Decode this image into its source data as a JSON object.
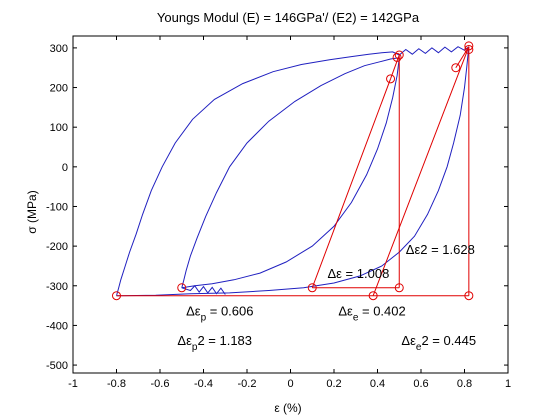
{
  "chart_data": {
    "type": "line",
    "title": "Youngs Modul (E) = 146GPa'/ (E2) = 142GPa",
    "xlabel": "ε (%)",
    "ylabel": "σ (MPa)",
    "xlim": [
      -1,
      1
    ],
    "ylim": [
      -520,
      330
    ],
    "xticks": [
      -1,
      -0.8,
      -0.6,
      -0.4,
      -0.2,
      0,
      0.2,
      0.4,
      0.6,
      0.8,
      1
    ],
    "xtick_labels": [
      "-1",
      "-0.8",
      "-0.6",
      "-0.4",
      "-0.2",
      "0",
      "0.2",
      "0.4",
      "0.6",
      "0.8",
      "1"
    ],
    "yticks": [
      -500,
      -400,
      -300,
      -200,
      -100,
      0,
      100,
      200,
      300
    ],
    "ytick_labels": [
      "-500",
      "-400",
      "-300",
      "-200",
      "-100",
      "0",
      "100",
      "200",
      "300"
    ],
    "grid": false,
    "colors": {
      "curve": "#2020c0",
      "construction": "#e00000",
      "text": "#000000"
    },
    "series": [
      {
        "role": "hysteresis-outer",
        "color": "#2020c0",
        "x": [
          -0.8,
          -0.79,
          -0.78,
          -0.76,
          -0.74,
          -0.71,
          -0.68,
          -0.64,
          -0.59,
          -0.53,
          -0.45,
          -0.35,
          -0.22,
          -0.08,
          0.05,
          0.18,
          0.28,
          0.36,
          0.42,
          0.47,
          0.5,
          0.53,
          0.56,
          0.59,
          0.62,
          0.65,
          0.68,
          0.71,
          0.74,
          0.77,
          0.8,
          0.82
        ],
        "y": [
          -325,
          -305,
          -285,
          -250,
          -215,
          -170,
          -120,
          -60,
          0,
          60,
          120,
          170,
          210,
          240,
          258,
          270,
          278,
          284,
          288,
          290,
          282,
          296,
          284,
          298,
          286,
          300,
          288,
          302,
          290,
          303,
          294,
          303
        ]
      },
      {
        "role": "hysteresis-outer-return",
        "color": "#2020c0",
        "x": [
          0.82,
          0.81,
          0.8,
          0.78,
          0.75,
          0.72,
          0.68,
          0.63,
          0.57,
          0.5,
          0.42,
          0.32,
          0.2,
          0.06,
          -0.1,
          -0.28,
          -0.46,
          -0.62,
          -0.8
        ],
        "y": [
          303,
          250,
          200,
          130,
          60,
          0,
          -60,
          -120,
          -175,
          -215,
          -250,
          -275,
          -293,
          -305,
          -312,
          -318,
          -320,
          -324,
          -325
        ]
      },
      {
        "role": "hysteresis-inner",
        "color": "#2020c0",
        "x": [
          -0.5,
          -0.49,
          -0.48,
          -0.46,
          -0.43,
          -0.39,
          -0.34,
          -0.28,
          -0.2,
          -0.1,
          0.02,
          0.14,
          0.25,
          0.34,
          0.41,
          0.46,
          0.5
        ],
        "y": [
          -305,
          -285,
          -262,
          -225,
          -180,
          -125,
          -65,
          0,
          60,
          115,
          165,
          205,
          235,
          255,
          265,
          272,
          275
        ]
      },
      {
        "role": "hysteresis-inner-return",
        "color": "#2020c0",
        "x": [
          0.5,
          0.49,
          0.47,
          0.44,
          0.4,
          0.35,
          0.28,
          0.2,
          0.1,
          -0.02,
          -0.14,
          -0.26,
          -0.36,
          -0.44,
          -0.5
        ],
        "y": [
          275,
          230,
          175,
          110,
          45,
          -20,
          -90,
          -150,
          -200,
          -240,
          -268,
          -285,
          -295,
          -300,
          -305
        ]
      },
      {
        "role": "compression-serrations",
        "color": "#2020c0",
        "x": [
          -0.5,
          -0.46,
          -0.44,
          -0.42,
          -0.4,
          -0.38,
          -0.36,
          -0.34,
          -0.32,
          -0.3
        ],
        "y": [
          -305,
          -312,
          -300,
          -316,
          -302,
          -318,
          -304,
          -320,
          -306,
          -322
        ]
      }
    ],
    "construction_lines": {
      "color": "#e00000",
      "segments": [
        {
          "x": [
            -0.8,
            0.82
          ],
          "y": [
            -325,
            -325
          ]
        },
        {
          "x": [
            0.82,
            0.82
          ],
          "y": [
            -325,
            303
          ]
        },
        {
          "x": [
            0.5,
            0.5
          ],
          "y": [
            -305,
            282
          ]
        },
        {
          "x": [
            0.1,
            0.5
          ],
          "y": [
            -305,
            -305
          ]
        },
        {
          "x": [
            0.1,
            0.46
          ],
          "y": [
            -305,
            222
          ]
        },
        {
          "x": [
            0.38,
            0.82
          ],
          "y": [
            -325,
            303
          ]
        },
        {
          "x": [
            0.46,
            0.5
          ],
          "y": [
            222,
            282
          ]
        },
        {
          "x": [
            0.76,
            0.82
          ],
          "y": [
            250,
            303
          ]
        }
      ],
      "markers": {
        "x": [
          -0.8,
          -0.5,
          0.1,
          0.38,
          0.5,
          0.82,
          0.5,
          0.49,
          0.46,
          0.76,
          0.82,
          0.82
        ],
        "y": [
          -325,
          -305,
          -305,
          -325,
          -305,
          -325,
          282,
          276,
          222,
          250,
          296,
          305
        ]
      }
    },
    "annotations": [
      {
        "main": "Δε2 = 1.628",
        "x": 0.53,
        "y": -220
      },
      {
        "main": "Δε = 1.008",
        "x": 0.17,
        "y": -280
      },
      {
        "main": "Δε",
        "sub": "p",
        "rest": " = 0.606",
        "x": -0.48,
        "y": -375
      },
      {
        "main": "Δε",
        "sub": "e",
        "rest": " = 0.402",
        "x": 0.22,
        "y": -375
      },
      {
        "main": "Δε",
        "sub": "p",
        "rest": "2 = 1.183",
        "x": -0.52,
        "y": -450
      },
      {
        "main": "Δε",
        "sub": "e",
        "rest": "2 = 0.445",
        "x": 0.51,
        "y": -450
      }
    ]
  }
}
